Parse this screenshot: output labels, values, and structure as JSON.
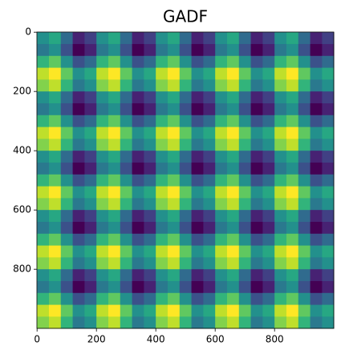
{
  "chart_data": {
    "type": "heatmap",
    "title": "GADF",
    "colormap": "viridis",
    "xlim": [
      -0.5,
      999.5
    ],
    "ylim": [
      999.5,
      -0.5
    ],
    "xticks": [
      0,
      200,
      400,
      600,
      800
    ],
    "yticks": [
      0,
      200,
      400,
      600,
      800
    ],
    "x": [
      20,
      60,
      100,
      140,
      180,
      220,
      260,
      300,
      340,
      380,
      420,
      460,
      500,
      540,
      580,
      620,
      660,
      700,
      740,
      780,
      820,
      860,
      900,
      940,
      980
    ],
    "y": [
      20,
      60,
      100,
      140,
      180,
      220,
      260,
      300,
      340,
      380,
      420,
      460,
      500,
      540,
      580,
      620,
      660,
      700,
      740,
      780,
      820,
      860,
      900,
      940,
      980
    ],
    "values": [
      [
        0,
        0.18,
        -0.29,
        -0.77,
        -0.59,
        0,
        0.18,
        -0.29,
        -0.77,
        -0.59,
        0,
        0.18,
        -0.29,
        -0.77,
        -0.59,
        0,
        0.18,
        -0.29,
        -0.77,
        -0.59,
        0,
        0.18,
        -0.29,
        -0.77,
        -0.59
      ],
      [
        -0.18,
        0,
        -0.48,
        -0.95,
        -0.77,
        -0.18,
        0,
        -0.48,
        -0.95,
        -0.77,
        -0.18,
        0,
        -0.48,
        -0.95,
        -0.77,
        -0.18,
        0,
        -0.48,
        -0.95,
        -0.77,
        -0.18,
        0,
        -0.48,
        -0.95,
        -0.77
      ],
      [
        0.29,
        0.48,
        0,
        -0.48,
        -0.29,
        0.29,
        0.48,
        0,
        -0.48,
        -0.29,
        0.29,
        0.48,
        0,
        -0.48,
        -0.29,
        0.29,
        0.48,
        0,
        -0.48,
        -0.29,
        0.29,
        0.48,
        0,
        -0.48,
        -0.29
      ],
      [
        0.77,
        0.95,
        0.48,
        0,
        0.18,
        0.77,
        0.95,
        0.48,
        0,
        0.18,
        0.77,
        0.95,
        0.48,
        0,
        0.18,
        0.77,
        0.95,
        0.48,
        0,
        0.18,
        0.77,
        0.95,
        0.48,
        0,
        0.18
      ],
      [
        0.59,
        0.77,
        0.29,
        -0.18,
        0,
        0.59,
        0.77,
        0.29,
        -0.18,
        0,
        0.59,
        0.77,
        0.29,
        -0.18,
        0,
        0.59,
        0.77,
        0.29,
        -0.18,
        0,
        0.59,
        0.77,
        0.29,
        -0.18,
        0
      ],
      [
        0,
        0.18,
        -0.29,
        -0.77,
        -0.59,
        0,
        0.18,
        -0.29,
        -0.77,
        -0.59,
        0,
        0.18,
        -0.29,
        -0.77,
        -0.59,
        0,
        0.18,
        -0.29,
        -0.77,
        -0.59,
        0,
        0.18,
        -0.29,
        -0.77,
        -0.59
      ],
      [
        -0.18,
        0,
        -0.48,
        -0.95,
        -0.77,
        -0.18,
        0,
        -0.48,
        -0.95,
        -0.77,
        -0.18,
        0,
        -0.48,
        -0.95,
        -0.77,
        -0.18,
        0,
        -0.48,
        -0.95,
        -0.77,
        -0.18,
        0,
        -0.48,
        -0.95,
        -0.77
      ],
      [
        0.29,
        0.48,
        0,
        -0.48,
        -0.29,
        0.29,
        0.48,
        0,
        -0.48,
        -0.29,
        0.29,
        0.48,
        0,
        -0.48,
        -0.29,
        0.29,
        0.48,
        0,
        -0.48,
        -0.29,
        0.29,
        0.48,
        0,
        -0.48,
        -0.29
      ],
      [
        0.77,
        0.95,
        0.48,
        0,
        0.18,
        0.77,
        0.95,
        0.48,
        0,
        0.18,
        0.77,
        0.95,
        0.48,
        0,
        0.18,
        0.77,
        0.95,
        0.48,
        0,
        0.18,
        0.77,
        0.95,
        0.48,
        0,
        0.18
      ],
      [
        0.59,
        0.77,
        0.29,
        -0.18,
        0,
        0.59,
        0.77,
        0.29,
        -0.18,
        0,
        0.59,
        0.77,
        0.29,
        -0.18,
        0,
        0.59,
        0.77,
        0.29,
        -0.18,
        0,
        0.59,
        0.77,
        0.29,
        -0.18,
        0
      ],
      [
        0,
        0.18,
        -0.29,
        -0.77,
        -0.59,
        0,
        0.18,
        -0.29,
        -0.77,
        -0.59,
        0,
        0.18,
        -0.29,
        -0.77,
        -0.59,
        0,
        0.18,
        -0.29,
        -0.77,
        -0.59,
        0,
        0.18,
        -0.29,
        -0.77,
        -0.59
      ],
      [
        -0.18,
        0,
        -0.48,
        -0.95,
        -0.77,
        -0.18,
        0,
        -0.48,
        -0.95,
        -0.77,
        -0.18,
        0,
        -0.48,
        -0.95,
        -0.77,
        -0.18,
        0,
        -0.48,
        -0.95,
        -0.77,
        -0.18,
        0,
        -0.48,
        -0.95,
        -0.77
      ],
      [
        0.29,
        0.48,
        0,
        -0.48,
        -0.29,
        0.29,
        0.48,
        0,
        -0.48,
        -0.29,
        0.29,
        0.48,
        0,
        -0.48,
        -0.29,
        0.29,
        0.48,
        0,
        -0.48,
        -0.29,
        0.29,
        0.48,
        0,
        -0.48,
        -0.29
      ],
      [
        0.77,
        0.95,
        0.48,
        0,
        0.18,
        0.77,
        0.95,
        0.48,
        0,
        0.18,
        0.77,
        0.95,
        0.48,
        0,
        0.18,
        0.77,
        0.95,
        0.48,
        0,
        0.18,
        0.77,
        0.95,
        0.48,
        0,
        0.18
      ],
      [
        0.59,
        0.77,
        0.29,
        -0.18,
        0,
        0.59,
        0.77,
        0.29,
        -0.18,
        0,
        0.59,
        0.77,
        0.29,
        -0.18,
        0,
        0.59,
        0.77,
        0.29,
        -0.18,
        0,
        0.59,
        0.77,
        0.29,
        -0.18,
        0
      ],
      [
        0,
        0.18,
        -0.29,
        -0.77,
        -0.59,
        0,
        0.18,
        -0.29,
        -0.77,
        -0.59,
        0,
        0.18,
        -0.29,
        -0.77,
        -0.59,
        0,
        0.18,
        -0.29,
        -0.77,
        -0.59,
        0,
        0.18,
        -0.29,
        -0.77,
        -0.59
      ],
      [
        -0.18,
        0,
        -0.48,
        -0.95,
        -0.77,
        -0.18,
        0,
        -0.48,
        -0.95,
        -0.77,
        -0.18,
        0,
        -0.48,
        -0.95,
        -0.77,
        -0.18,
        0,
        -0.48,
        -0.95,
        -0.77,
        -0.18,
        0,
        -0.48,
        -0.95,
        -0.77
      ],
      [
        0.29,
        0.48,
        0,
        -0.48,
        -0.29,
        0.29,
        0.48,
        0,
        -0.48,
        -0.29,
        0.29,
        0.48,
        0,
        -0.48,
        -0.29,
        0.29,
        0.48,
        0,
        -0.48,
        -0.29,
        0.29,
        0.48,
        0,
        -0.48,
        -0.29
      ],
      [
        0.77,
        0.95,
        0.48,
        0,
        0.18,
        0.77,
        0.95,
        0.48,
        0,
        0.18,
        0.77,
        0.95,
        0.48,
        0,
        0.18,
        0.77,
        0.95,
        0.48,
        0,
        0.18,
        0.77,
        0.95,
        0.48,
        0,
        0.18
      ],
      [
        0.59,
        0.77,
        0.29,
        -0.18,
        0,
        0.59,
        0.77,
        0.29,
        -0.18,
        0,
        0.59,
        0.77,
        0.29,
        -0.18,
        0,
        0.59,
        0.77,
        0.29,
        -0.18,
        0,
        0.59,
        0.77,
        0.29,
        -0.18,
        0
      ],
      [
        0,
        0.18,
        -0.29,
        -0.77,
        -0.59,
        0,
        0.18,
        -0.29,
        -0.77,
        -0.59,
        0,
        0.18,
        -0.29,
        -0.77,
        -0.59,
        0,
        0.18,
        -0.29,
        -0.77,
        -0.59,
        0,
        0.18,
        -0.29,
        -0.77,
        -0.59
      ],
      [
        -0.18,
        0,
        -0.48,
        -0.95,
        -0.77,
        -0.18,
        0,
        -0.48,
        -0.95,
        -0.77,
        -0.18,
        0,
        -0.48,
        -0.95,
        -0.77,
        -0.18,
        0,
        -0.48,
        -0.95,
        -0.77,
        -0.18,
        0,
        -0.48,
        -0.95,
        -0.77
      ],
      [
        0.29,
        0.48,
        0,
        -0.48,
        -0.29,
        0.29,
        0.48,
        0,
        -0.48,
        -0.29,
        0.29,
        0.48,
        0,
        -0.48,
        -0.29,
        0.29,
        0.48,
        0,
        -0.48,
        -0.29,
        0.29,
        0.48,
        0,
        -0.48,
        -0.29
      ],
      [
        0.77,
        0.95,
        0.48,
        0,
        0.18,
        0.77,
        0.95,
        0.48,
        0,
        0.18,
        0.77,
        0.95,
        0.48,
        0,
        0.18,
        0.77,
        0.95,
        0.48,
        0,
        0.18,
        0.77,
        0.95,
        0.48,
        0,
        0.18
      ],
      [
        0.59,
        0.77,
        0.29,
        -0.18,
        0,
        0.59,
        0.77,
        0.29,
        -0.18,
        0,
        0.59,
        0.77,
        0.29,
        -0.18,
        0,
        0.59,
        0.77,
        0.29,
        -0.18,
        0,
        0.59,
        0.77,
        0.29,
        -0.18,
        0
      ]
    ]
  }
}
